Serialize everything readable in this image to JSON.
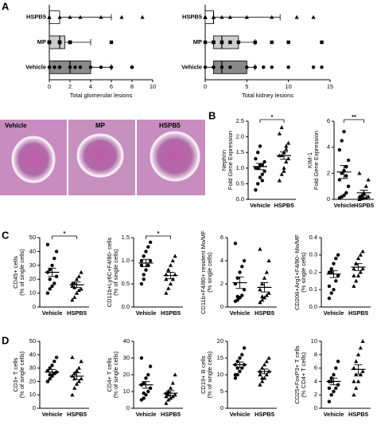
{
  "panel_labels": [
    "A",
    "B",
    "C",
    "D"
  ],
  "histology_labels": [
    "Vehicle",
    "MP",
    "HSPB5"
  ],
  "chart_data": [
    {
      "type": "box",
      "x_label": "Total glomerular lesions",
      "xlim": [
        0,
        10
      ],
      "xticks": [
        0,
        2,
        4,
        6,
        8,
        10
      ],
      "series": [
        {
          "name": "HSPB5",
          "color": "#ffffff",
          "marker": "triangle",
          "values": [
            0,
            0,
            0,
            0,
            1,
            2,
            3,
            5,
            7,
            9
          ],
          "box": [
            0,
            0,
            0,
            1,
            6
          ]
        },
        {
          "name": "MP",
          "color": "#cccccc",
          "marker": "square",
          "values": [
            0,
            0,
            0,
            0,
            1,
            1,
            1,
            2,
            2,
            2,
            6
          ],
          "box": [
            0,
            0,
            1,
            1.5,
            4
          ]
        },
        {
          "name": "Vehicle",
          "color": "#8a8a8a",
          "marker": "circle",
          "values": [
            0,
            0.5,
            1,
            1,
            2,
            2.5,
            3,
            4,
            5,
            6,
            8,
            8,
            8
          ],
          "box": [
            0,
            0,
            2,
            4,
            6
          ]
        }
      ]
    },
    {
      "type": "box",
      "x_label": "Total kidney lesions",
      "xlim": [
        0,
        15
      ],
      "xticks": [
        0,
        5,
        10,
        15
      ],
      "series": [
        {
          "name": "HSPB5",
          "color": "#ffffff",
          "marker": "triangle",
          "values": [
            0,
            0,
            0,
            0,
            1,
            1,
            1,
            2,
            3,
            5,
            8,
            11,
            13
          ],
          "box": [
            0,
            0,
            1,
            1,
            9
          ]
        },
        {
          "name": "MP",
          "color": "#cccccc",
          "marker": "square",
          "values": [
            0,
            1,
            1,
            2,
            2,
            3,
            4,
            6,
            8,
            10,
            14
          ],
          "box": [
            0,
            1,
            2,
            4,
            6
          ]
        },
        {
          "name": "Vehicle",
          "color": "#8a8a8a",
          "marker": "circle",
          "values": [
            0,
            1,
            1,
            2,
            2,
            3,
            5,
            6,
            7,
            8,
            10,
            13,
            14
          ],
          "box": [
            0,
            1,
            2,
            5,
            6
          ]
        }
      ]
    },
    {
      "type": "dot",
      "y_label": [
        "Nephrin",
        "Fold Gene Expression"
      ],
      "significance": "*",
      "ylim": [
        0,
        2.5
      ],
      "yticks": [
        {
          "value": 0,
          "label": "0.0"
        },
        0.5,
        {
          "value": 1,
          "label": "1.0"
        },
        1.5,
        {
          "value": 2,
          "label": "2.0"
        },
        2.5
      ],
      "series": [
        {
          "name": "Vehicle",
          "marker": "circle",
          "values": [
            0.3,
            0.5,
            0.7,
            0.8,
            0.9,
            1.0,
            1.0,
            1.1,
            1.1,
            1.2,
            1.3,
            1.5,
            1.7,
            0.6
          ],
          "mean": 1.05,
          "sem": 0.1
        },
        {
          "name": "HSPB5",
          "marker": "triangle",
          "values": [
            0.6,
            0.8,
            1.0,
            1.2,
            1.3,
            1.4,
            1.4,
            1.5,
            1.6,
            1.8,
            2.1,
            2.3,
            0.9,
            1.7
          ],
          "mean": 1.4,
          "sem": 0.12
        }
      ]
    },
    {
      "type": "dot",
      "y_label": [
        "KIM-1",
        "Fold Gene Expression"
      ],
      "significance": "**",
      "ylim": [
        0,
        6
      ],
      "yticks": [
        0,
        2,
        4,
        6
      ],
      "series": [
        {
          "name": "Vehicle",
          "marker": "circle",
          "values": [
            0.1,
            0.2,
            0.3,
            0.5,
            1.0,
            1.5,
            2.0,
            2.2,
            2.5,
            3.0,
            3.8,
            4.5,
            5.2,
            1.8
          ],
          "mean": 2.1,
          "sem": 0.5
        },
        {
          "name": "HSPB5",
          "marker": "triangle",
          "values": [
            0,
            0.05,
            0.1,
            0.1,
            0.2,
            0.2,
            0.3,
            0.5,
            1.0,
            1.5,
            2.0,
            0.1,
            0.4
          ],
          "mean": 0.5,
          "sem": 0.2
        }
      ]
    },
    {
      "type": "dot",
      "y_label": [
        "CD45+ cells",
        "(% of single cells)"
      ],
      "significance": "*",
      "ylim": [
        0,
        50
      ],
      "yticks": [
        0,
        10,
        20,
        30,
        40,
        50
      ],
      "series": [
        {
          "name": "Vehicle",
          "marker": "circle",
          "values": [
            10,
            13,
            15,
            17,
            22,
            25,
            27,
            30,
            35,
            40,
            45,
            20
          ],
          "mean": 25,
          "sem": 3
        },
        {
          "name": "HSPB5",
          "marker": "triangle",
          "values": [
            5,
            7,
            10,
            12,
            13,
            15,
            17,
            20,
            22,
            25,
            17,
            14
          ],
          "mean": 16,
          "sem": 2
        }
      ]
    },
    {
      "type": "dot",
      "y_label": [
        "CD11b+Ly6C+F4/80- cells",
        "(% of single cells)"
      ],
      "significance": "*",
      "ylim": [
        0,
        1.5
      ],
      "yticks": [
        {
          "value": 0,
          "label": "0.0"
        },
        0.5,
        {
          "value": 1,
          "label": "1.0"
        },
        1.5
      ],
      "series": [
        {
          "name": "Vehicle",
          "marker": "circle",
          "values": [
            0.5,
            0.6,
            0.8,
            0.9,
            1.0,
            1.0,
            1.1,
            1.2,
            1.3,
            1.4,
            0.9,
            0.7
          ],
          "mean": 0.95,
          "sem": 0.08
        },
        {
          "name": "HSPB5",
          "marker": "triangle",
          "values": [
            0.3,
            0.4,
            0.5,
            0.6,
            0.7,
            0.7,
            0.8,
            0.9,
            1.0,
            1.1,
            0.6,
            0.8
          ],
          "mean": 0.68,
          "sem": 0.07
        }
      ]
    },
    {
      "type": "dot",
      "y_label": [
        "CD11b+F4/80+ resident Mo/MF",
        "(% single cells)"
      ],
      "ylim": [
        0,
        6
      ],
      "yticks": [
        0,
        2,
        4,
        6
      ],
      "series": [
        {
          "name": "Vehicle",
          "marker": "circle",
          "values": [
            0.5,
            0.6,
            0.8,
            1.0,
            1.5,
            2.0,
            2.5,
            3.0,
            3.5,
            4.0,
            5.5,
            0.9
          ],
          "mean": 2.1,
          "sem": 0.5
        },
        {
          "name": "HSPB5",
          "marker": "triangle",
          "values": [
            0.4,
            0.6,
            0.8,
            1.0,
            1.2,
            1.5,
            2.0,
            2.5,
            3.0,
            4.0,
            5.0,
            0.9
          ],
          "mean": 1.7,
          "sem": 0.4
        }
      ]
    },
    {
      "type": "dot",
      "y_label": [
        "CD206+Arg1+F4/80- Mo/MF",
        "(% single cells)"
      ],
      "ylim": [
        0,
        0.4
      ],
      "yticks": [
        {
          "value": 0,
          "label": "0.0"
        },
        0.1,
        0.2,
        0.3,
        0.4
      ],
      "series": [
        {
          "name": "Vehicle",
          "marker": "circle",
          "values": [
            0.05,
            0.08,
            0.1,
            0.15,
            0.18,
            0.2,
            0.22,
            0.25,
            0.28,
            0.3,
            0.12,
            0.2
          ],
          "mean": 0.19,
          "sem": 0.02
        },
        {
          "name": "HSPB5",
          "marker": "triangle",
          "values": [
            0.12,
            0.15,
            0.18,
            0.2,
            0.22,
            0.22,
            0.25,
            0.28,
            0.3,
            0.32,
            0.18,
            0.25
          ],
          "mean": 0.23,
          "sem": 0.02
        }
      ]
    },
    {
      "type": "dot",
      "y_label": [
        "CD3+ T cells",
        "(% of single cells)"
      ],
      "ylim": [
        0,
        50
      ],
      "yticks": [
        0,
        10,
        20,
        30,
        40,
        50
      ],
      "series": [
        {
          "name": "Vehicle",
          "marker": "circle",
          "values": [
            20,
            22,
            24,
            26,
            27,
            28,
            30,
            32,
            35,
            38,
            20,
            25
          ],
          "mean": 27,
          "sem": 2
        },
        {
          "name": "HSPB5",
          "marker": "triangle",
          "values": [
            10,
            15,
            18,
            20,
            22,
            24,
            26,
            28,
            30,
            35,
            38,
            22
          ],
          "mean": 24,
          "sem": 2.5
        }
      ]
    },
    {
      "type": "dot",
      "y_label": [
        "CD4+ T cells",
        "(% of single cells)"
      ],
      "ylim": [
        0,
        40
      ],
      "yticks": [
        0,
        10,
        20,
        30,
        40
      ],
      "series": [
        {
          "name": "Vehicle",
          "marker": "circle",
          "values": [
            5,
            6,
            8,
            10,
            12,
            14,
            15,
            18,
            20,
            25,
            30,
            9
          ],
          "mean": 14,
          "sem": 2
        },
        {
          "name": "HSPB5",
          "marker": "triangle",
          "values": [
            3,
            5,
            6,
            7,
            8,
            9,
            10,
            12,
            15,
            20,
            7,
            8
          ],
          "mean": 9,
          "sem": 1.5
        }
      ]
    },
    {
      "type": "dot",
      "y_label": [
        "CD19+ B cells",
        "(% of single cells)"
      ],
      "ylim": [
        0,
        20
      ],
      "yticks": [
        0,
        5,
        10,
        15,
        20
      ],
      "series": [
        {
          "name": "Vehicle",
          "marker": "circle",
          "values": [
            9,
            10,
            11,
            12,
            13,
            13,
            14,
            15,
            16,
            18,
            10,
            12
          ],
          "mean": 13,
          "sem": 0.8
        },
        {
          "name": "HSPB5",
          "marker": "triangle",
          "values": [
            7,
            8,
            9,
            10,
            11,
            11,
            12,
            13,
            14,
            15,
            10,
            9
          ],
          "mean": 11,
          "sem": 0.7
        }
      ]
    },
    {
      "type": "dot",
      "y_label": [
        "CD25+FoxP3+ T cells",
        "(% CD4+ T cells)"
      ],
      "ylim": [
        0,
        10
      ],
      "yticks": [
        0,
        2,
        4,
        6,
        8,
        10
      ],
      "series": [
        {
          "name": "Vehicle",
          "marker": "circle",
          "values": [
            1,
            2,
            2.5,
            3,
            3.5,
            4,
            4.5,
            5,
            6,
            7,
            3,
            4
          ],
          "mean": 4,
          "sem": 0.5
        },
        {
          "name": "HSPB5",
          "marker": "triangle",
          "values": [
            2,
            3,
            4,
            5,
            5.5,
            6,
            7,
            8,
            9,
            10,
            4,
            5
          ],
          "mean": 5.8,
          "sem": 0.7
        }
      ]
    }
  ]
}
